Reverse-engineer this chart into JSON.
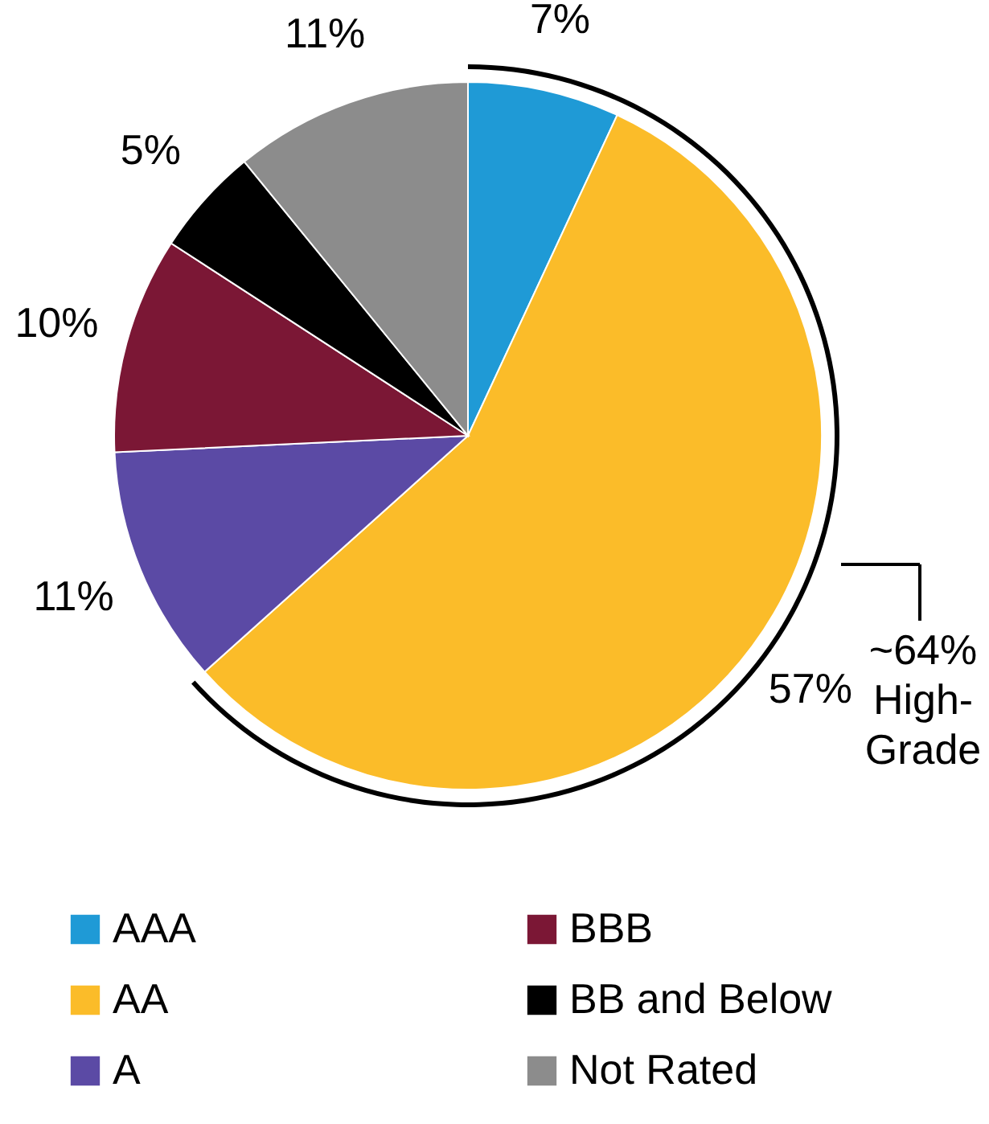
{
  "chart_data": {
    "type": "pie",
    "categories": [
      "AAA",
      "AA",
      "A",
      "BBB",
      "BB and Below",
      "Not Rated"
    ],
    "values": [
      7,
      57,
      11,
      10,
      5,
      11
    ],
    "colors": [
      "#1f9ad6",
      "#fbbc29",
      "#5b4aa5",
      "#7b1735",
      "#000000",
      "#8c8c8c"
    ],
    "value_labels": [
      "7%",
      "57%",
      "11%",
      "10%",
      "5%",
      "11%"
    ],
    "annotations": [
      "~64%\nHigh-\nGrade"
    ],
    "legend": "bottom"
  }
}
